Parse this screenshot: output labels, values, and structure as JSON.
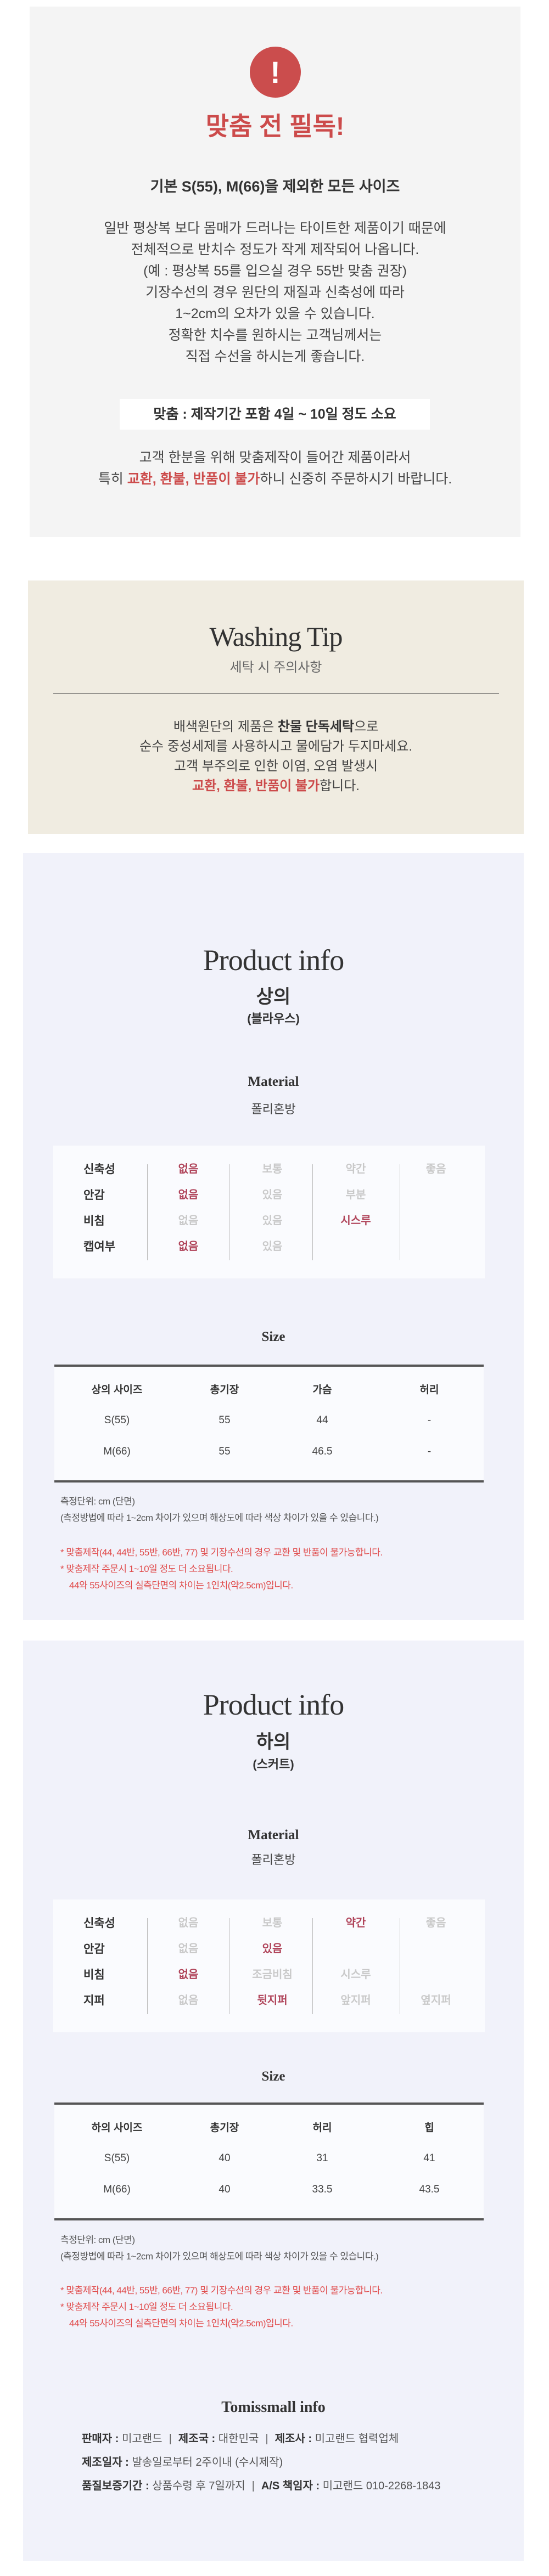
{
  "notice": {
    "icon": "exclamation-icon",
    "icon_glyph": "!",
    "title": "맞춤 전 필독!",
    "subtitle": "기본 S(55), M(66)을 제외한 모든 사이즈",
    "body_lines": [
      "일반 평상복 보다 몸매가 드러나는 타이트한 제품이기 때문에",
      "전체적으로 반치수 정도가 작게 제작되어 나옵니다.",
      "(예 : 평상복 55를 입으실 경우 55반 맞춤 권장)",
      "기장수선의 경우 원단의 재질과 신축성에 따라",
      "1~2cm의 오차가 있을 수 있습니다.",
      "정확한 치수를 원하시는 고객님께서는",
      "직접 수선을 하시는게 좋습니다."
    ],
    "lead_time": "맞춤 : 제작기간 포함 4일 ~ 10일 정도 소요",
    "closing_line1": "고객 한분을 위해 맞춤제작이 들어간 제품이라서",
    "closing_prefix": "특히 ",
    "closing_warning": "교환, 환불, 반품이 불가",
    "closing_suffix": "하니 신중히 주문하시기 바랍니다.",
    "accent_color": "#cc4b4b"
  },
  "washing": {
    "title": "Washing Tip",
    "subtitle": "세탁 시 주의사항",
    "line1_prefix": "배색원단의 제품은 ",
    "line1_bold": "찬물 단독세탁",
    "line1_suffix": "으로",
    "line2": "순수 중성세제를 사용하시고 물에담가 두지마세요.",
    "line3": "고객 부주의로 인한 이염, 오염 발생시",
    "line4_warning": "교환, 환불, 반품이 불가",
    "line4_suffix": "합니다."
  },
  "products": [
    {
      "title": "Product info",
      "category": "상의",
      "type": "(블라우스)",
      "material_label": "Material",
      "material": "폴리혼방",
      "attributes": [
        {
          "label": "신축성",
          "cells": [
            {
              "text": "없음",
              "on": true
            },
            {
              "text": "보통",
              "on": false
            },
            {
              "text": "약간",
              "on": false
            },
            {
              "text": "좋음",
              "on": false
            }
          ]
        },
        {
          "label": "안감",
          "cells": [
            {
              "text": "없음",
              "on": true
            },
            {
              "text": "있음",
              "on": false
            },
            {
              "text": "부분",
              "on": false
            },
            {
              "text": "",
              "on": false
            }
          ]
        },
        {
          "label": "비침",
          "cells": [
            {
              "text": "없음",
              "on": false
            },
            {
              "text": "있음",
              "on": false
            },
            {
              "text": "시스루",
              "on": true
            },
            {
              "text": "",
              "on": false
            }
          ]
        },
        {
          "label": "캡여부",
          "cells": [
            {
              "text": "없음",
              "on": true
            },
            {
              "text": "있음",
              "on": false
            },
            {
              "text": "",
              "on": false
            },
            {
              "text": "",
              "on": false
            }
          ]
        }
      ],
      "size_label": "Size",
      "size_headers": [
        "상의 사이즈",
        "총기장",
        "가슴",
        "허리"
      ],
      "size_rows": [
        [
          "S(55)",
          "55",
          "44",
          "-"
        ],
        [
          "M(66)",
          "55",
          "46.5",
          "-"
        ]
      ],
      "notes": [
        "측정단위: cm (단면)",
        "(측정방법에 따라 1~2cm 차이가 있으며 해상도에 따라 색상 차이가 있을 수 있습니다.)"
      ],
      "red_notes": [
        "* 맞춤제작(44, 44반, 55반, 66반, 77) 및 기장수선의 경우 교환 및 반품이 불가능합니다.",
        "* 맞춤제작 주문시 1~10일 정도 더 소요됩니다.",
        "44와 55사이즈의 실측단면의 차이는 1인치(약2.5cm)입니다."
      ]
    },
    {
      "title": "Product info",
      "category": "하의",
      "type": "(스커트)",
      "material_label": "Material",
      "material": "폴리혼방",
      "attributes": [
        {
          "label": "신축성",
          "cells": [
            {
              "text": "없음",
              "on": false
            },
            {
              "text": "보통",
              "on": false
            },
            {
              "text": "약간",
              "on": true
            },
            {
              "text": "좋음",
              "on": false
            }
          ]
        },
        {
          "label": "안감",
          "cells": [
            {
              "text": "없음",
              "on": false
            },
            {
              "text": "있음",
              "on": true
            },
            {
              "text": "",
              "on": false
            },
            {
              "text": "",
              "on": false
            }
          ]
        },
        {
          "label": "비침",
          "cells": [
            {
              "text": "없음",
              "on": true
            },
            {
              "text": "조금비침",
              "on": false
            },
            {
              "text": "시스루",
              "on": false
            },
            {
              "text": "",
              "on": false
            }
          ]
        },
        {
          "label": "지퍼",
          "cells": [
            {
              "text": "없음",
              "on": false
            },
            {
              "text": "뒷지퍼",
              "on": true
            },
            {
              "text": "앞지퍼",
              "on": false
            },
            {
              "text": "옆지퍼",
              "on": false
            }
          ]
        }
      ],
      "size_label": "Size",
      "size_headers": [
        "하의 사이즈",
        "총기장",
        "허리",
        "힙"
      ],
      "size_rows": [
        [
          "S(55)",
          "40",
          "31",
          "41"
        ],
        [
          "M(66)",
          "40",
          "33.5",
          "43.5"
        ]
      ],
      "notes": [
        "측정단위: cm (단면)",
        "(측정방법에 따라 1~2cm 차이가 있으며 해상도에 따라 색상 차이가 있을 수 있습니다.)"
      ],
      "red_notes": [
        "* 맞춤제작(44, 44반, 55반, 66반, 77) 및 기장수선의 경우 교환 및 반품이 불가능합니다.",
        "* 맞춤제작 주문시 1~10일 정도 더 소요됩니다.",
        "44와 55사이즈의 실측단면의 차이는 1인치(약2.5cm)입니다."
      ]
    }
  ],
  "shop_info": {
    "title": "Tomissmall info",
    "separator": "|",
    "seller_label": "판매자 :",
    "seller": "미고랜드",
    "country_label": "제조국 :",
    "country": "대한민국",
    "maker_label": "제조사 :",
    "maker": "미고랜드 협력업체",
    "date_label": "제조일자 :",
    "date": "발송일로부터 2주이내 (수시제작)",
    "warranty_label": "품질보증기간 :",
    "warranty": "상품수령 후 7일까지",
    "as_label": "A/S 책임자 :",
    "as": "미고랜드 010-2268-1843"
  }
}
